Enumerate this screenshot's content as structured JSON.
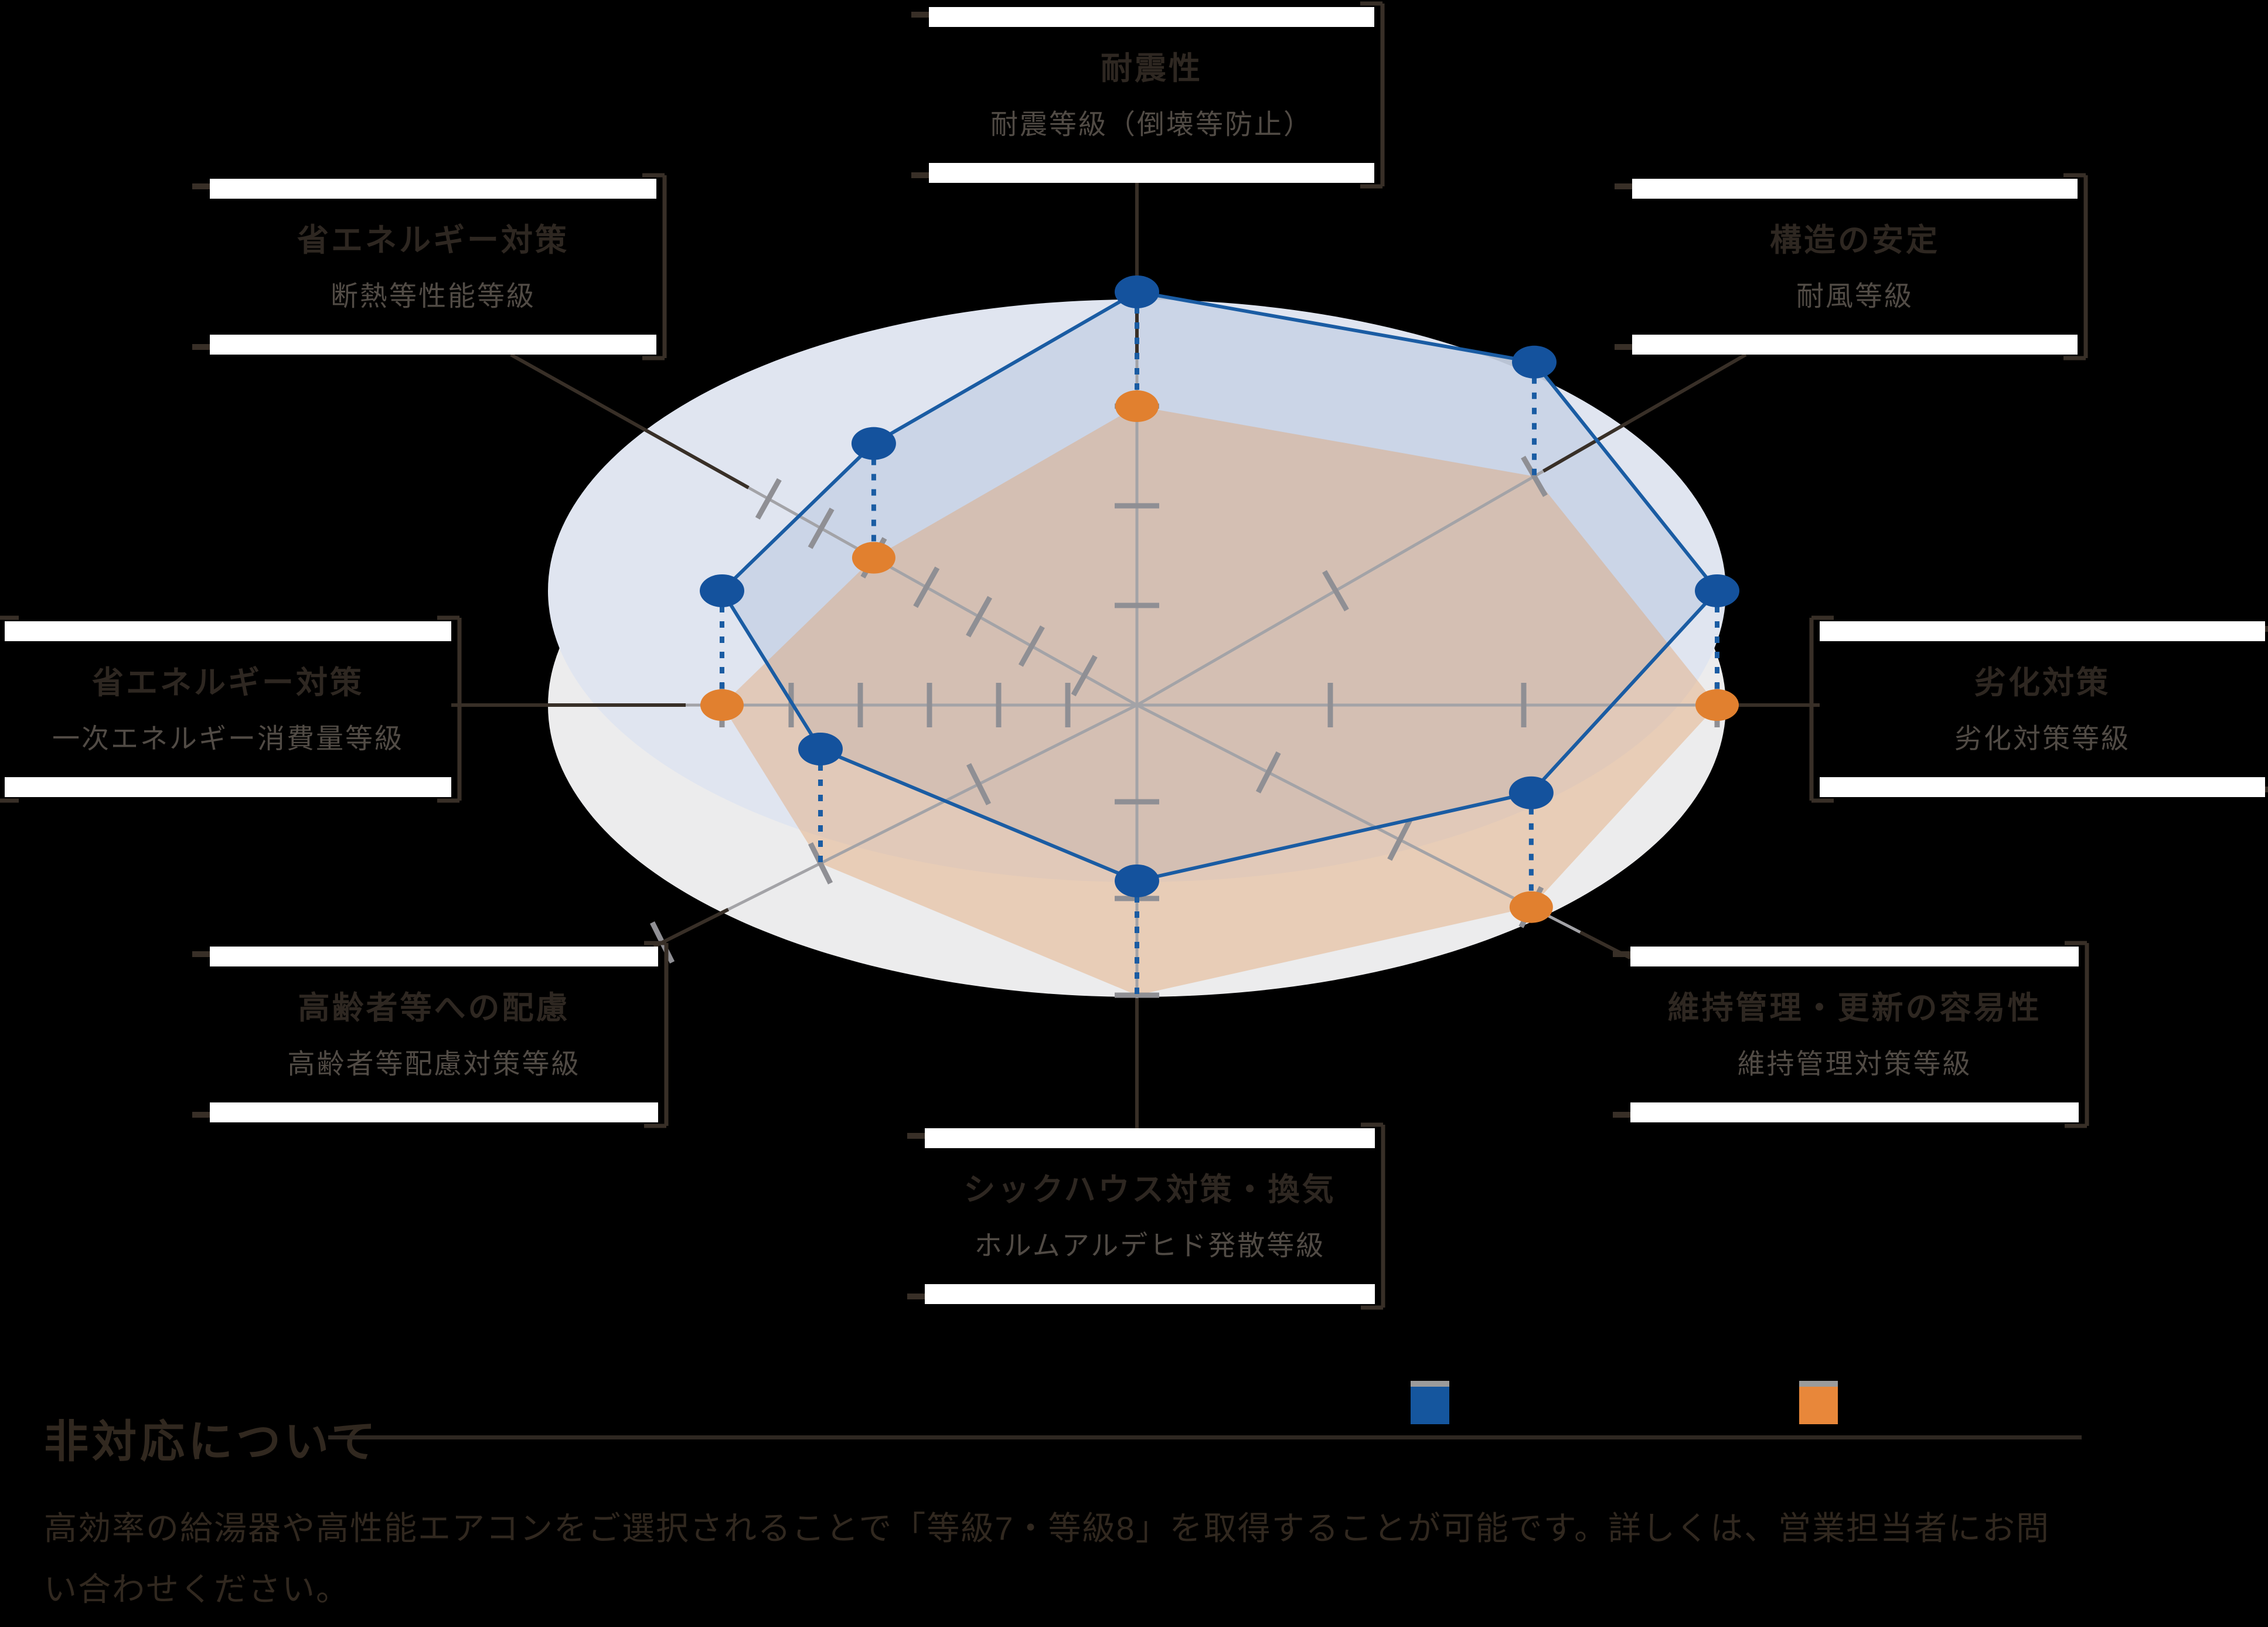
{
  "page": {
    "background": "#000000"
  },
  "colors": {
    "floor_ellipse": "#ececed",
    "upper_ellipse": "#e0e5f0",
    "blue_fill": "#c9d4e6",
    "shadow_fill": "rgba(225,156,95,0.38)",
    "blue_stroke": "#1a5ca3",
    "blue_dot": "#14529d",
    "orange_dot": "#e1802f",
    "axis_gray": "#a3a3a7",
    "tick_gray": "#8f8f94",
    "dark_line": "#382f27",
    "label_title": "#2e2721",
    "label_sub": "#514b45",
    "label_box": "#ffffff"
  },
  "legend": {
    "items": [
      {
        "name": "series-blue",
        "color": "#15569e"
      },
      {
        "name": "series-orange",
        "color": "#e8873a"
      }
    ]
  },
  "footer": {
    "heading": "非対応について",
    "body": "高効率の給湯器や高性能エアコンをご選択されることで「等級7・等級8」を取得することが可能です。詳しくは、営業担当者にお問い合わせください。"
  },
  "chart_data": {
    "type": "radar",
    "title": "",
    "legend_position": "bottom",
    "grid": "ticks-per-axis",
    "axes": [
      {
        "label": "耐震性",
        "sub": "耐震等級（倒壊等防止）",
        "max": 3,
        "value": 3
      },
      {
        "label": "構造の安定",
        "sub": "耐風等級",
        "max": 2,
        "value": 2
      },
      {
        "label": "劣化対策",
        "sub": "劣化対策等級",
        "max": 3,
        "value": 3
      },
      {
        "label": "維持管理・更新の容易性",
        "sub": "維持管理対策等級",
        "max": 3,
        "value": 3
      },
      {
        "label": "シックハウス対策・換気",
        "sub": "ホルムアルデヒド発散等級",
        "max": 3,
        "value": 3
      },
      {
        "label": "高齢者等への配慮",
        "sub": "高齢者等配慮対策等級",
        "max": 3,
        "value": 2
      },
      {
        "label": "省エネルギー対策",
        "sub": "一次エネルギー消費量等級",
        "max": 6,
        "value": 6
      },
      {
        "label": "省エネルギー対策",
        "sub": "断熱等性能等級",
        "max": 7,
        "value": 5
      }
    ],
    "series": [
      {
        "name": "upper-plane-blue",
        "values": [
          3,
          2,
          3,
          3,
          3,
          2,
          6,
          5
        ]
      },
      {
        "name": "floor-projection-orange",
        "values": [
          3,
          2,
          3,
          3,
          3,
          2,
          6,
          5
        ]
      }
    ],
    "geometry": {
      "center": [
        1940,
        1203
      ],
      "plane_offset": 195,
      "ellipse": {
        "rx": 1005,
        "ry": 497
      },
      "axes": [
        {
          "dir": [
            0,
            -1
          ],
          "spacing": 170,
          "ticks": 3,
          "gray_end": 600,
          "dot": true,
          "bracket": "right",
          "box": [
            1585,
            12,
            760,
            300
          ]
        },
        {
          "dir": [
            0.867,
            -0.499
          ],
          "spacing": 391,
          "ticks": 2,
          "gray_end": 800,
          "dot": false,
          "bracket": "right",
          "box": [
            2785,
            305,
            760,
            300
          ]
        },
        {
          "dir": [
            1,
            0
          ],
          "spacing": 330,
          "ticks": 3,
          "gray_end": 1005,
          "dot": true,
          "bracket": "left",
          "box": [
            3105,
            1060,
            760,
            300
          ]
        },
        {
          "dir": [
            0.89,
            0.456
          ],
          "spacing": 252,
          "ticks": 3,
          "gray_end": 850,
          "dot": true,
          "bracket": "right",
          "box": [
            2782,
            1615,
            765,
            300
          ]
        },
        {
          "dir": [
            0,
            1
          ],
          "spacing": 165,
          "ticks": 3,
          "gray_end": 500,
          "dot": false,
          "bracket": "right",
          "box": [
            1578,
            1925,
            768,
            300
          ]
        },
        {
          "dir": [
            -0.894,
            0.447
          ],
          "spacing": 302,
          "ticks": 3,
          "gray_end": 780,
          "dot": false,
          "bracket": "right",
          "box": [
            358,
            1615,
            765,
            300
          ]
        },
        {
          "dir": [
            -1,
            0
          ],
          "spacing": 118,
          "ticks": 6,
          "gray_end": 770,
          "dot": true,
          "bracket": "both",
          "box": [
            8,
            1060,
            762,
            300
          ]
        },
        {
          "dir": [
            -0.872,
            -0.488
          ],
          "spacing": 103,
          "ticks": 7,
          "gray_end": 760,
          "dot": true,
          "bracket": "right",
          "box": [
            358,
            305,
            762,
            300
          ]
        }
      ]
    }
  }
}
